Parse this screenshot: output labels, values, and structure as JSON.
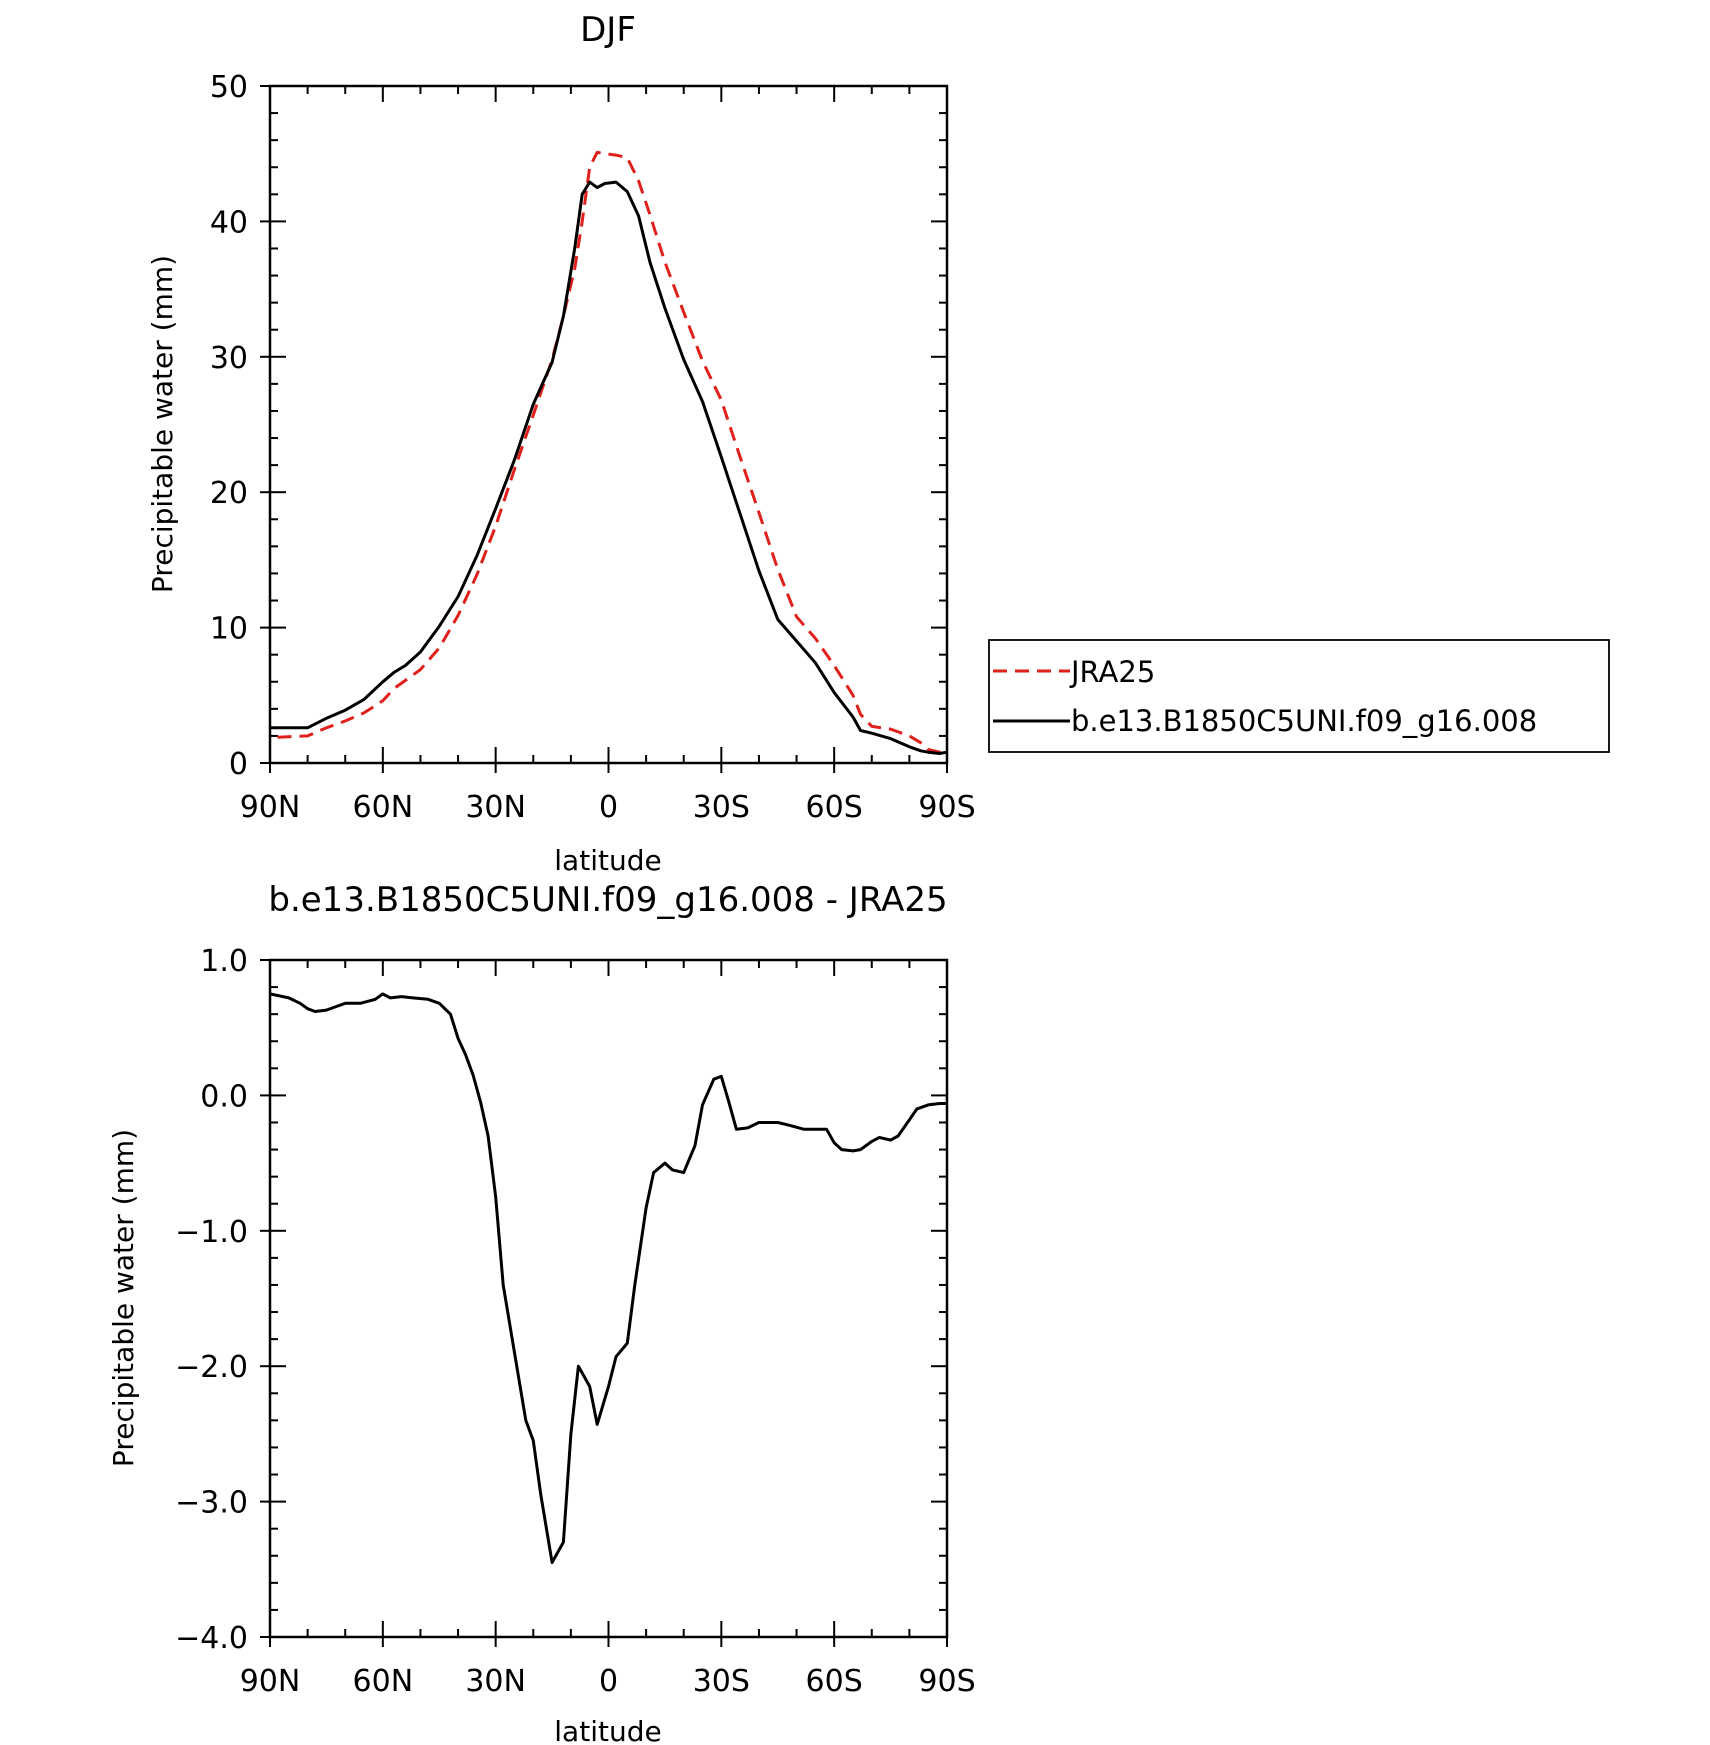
{
  "chart_data": [
    {
      "type": "line",
      "title": "DJF",
      "xlabel": "latitude",
      "ylabel": "Precipitable water (mm)",
      "xlim": [
        90,
        -90
      ],
      "ylim": [
        0,
        50
      ],
      "xticks": [
        90,
        60,
        30,
        0,
        -30,
        -60,
        -90
      ],
      "xtick_labels": [
        "90N",
        "60N",
        "30N",
        "0",
        "30S",
        "60S",
        "90S"
      ],
      "yticks": [
        0,
        10,
        20,
        30,
        40,
        50
      ],
      "ytick_labels": [
        "0",
        "10",
        "20",
        "30",
        "40",
        "50"
      ],
      "grid": false,
      "legend": {
        "placement": "right",
        "entries": [
          "JRA25",
          "b.e13.B1850C5UNI.f09_g16.008"
        ]
      },
      "series": [
        {
          "name": "JRA25",
          "color": "#e0201b",
          "dash": "dashed",
          "x": [
            88,
            80,
            75,
            70,
            65,
            60,
            57,
            54,
            50,
            45,
            40,
            35,
            30,
            25,
            20,
            15,
            12,
            9,
            7,
            5,
            3,
            1,
            -2,
            -5,
            -8,
            -11,
            -15,
            -20,
            -25,
            -30,
            -35,
            -40,
            -45,
            -50,
            -55,
            -60,
            -65,
            -67,
            -70,
            -75,
            -80,
            -83,
            -85,
            -88,
            -90
          ],
          "y": [
            1.9,
            2.0,
            2.6,
            3.1,
            3.7,
            4.6,
            5.5,
            6.1,
            6.9,
            8.5,
            10.9,
            13.9,
            17.5,
            21.7,
            25.7,
            29.8,
            33.0,
            36.5,
            40.0,
            44.0,
            45.1,
            45.0,
            44.9,
            44.7,
            43.0,
            40.5,
            37.0,
            33.3,
            29.7,
            26.8,
            22.6,
            18.5,
            14.3,
            10.8,
            9.2,
            7.2,
            5.0,
            3.6,
            2.7,
            2.5,
            2.0,
            1.5,
            1.0,
            0.8,
            0.8
          ]
        },
        {
          "name": "b.e13.B1850C5UNI.f09_g16.008",
          "color": "#000000",
          "dash": "solid",
          "x": [
            90,
            80,
            75,
            70,
            65,
            60,
            57,
            54,
            50,
            45,
            40,
            35,
            30,
            25,
            20,
            15,
            12,
            9,
            7,
            5,
            3,
            1,
            -2,
            -5,
            -8,
            -11,
            -15,
            -20,
            -25,
            -30,
            -35,
            -40,
            -45,
            -50,
            -55,
            -60,
            -65,
            -67,
            -70,
            -75,
            -80,
            -83,
            -85,
            -88,
            -90
          ],
          "y": [
            2.6,
            2.6,
            3.3,
            3.9,
            4.7,
            6.0,
            6.7,
            7.2,
            8.2,
            10.1,
            12.3,
            15.3,
            18.8,
            22.4,
            26.5,
            29.6,
            33.0,
            38.0,
            42.0,
            42.9,
            42.5,
            42.8,
            42.9,
            42.2,
            40.4,
            37.0,
            33.6,
            29.8,
            26.7,
            22.6,
            18.4,
            14.2,
            10.6,
            9.0,
            7.4,
            5.2,
            3.4,
            2.4,
            2.2,
            1.8,
            1.2,
            0.9,
            0.8,
            0.7,
            0.8
          ]
        }
      ]
    },
    {
      "type": "line",
      "title": "b.e13.B1850C5UNI.f09_g16.008 - JRA25",
      "xlabel": "latitude",
      "ylabel": "Precipitable water (mm)",
      "xlim": [
        90,
        -90
      ],
      "ylim": [
        -4.0,
        1.0
      ],
      "xticks": [
        90,
        60,
        30,
        0,
        -30,
        -60,
        -90
      ],
      "xtick_labels": [
        "90N",
        "60N",
        "30N",
        "0",
        "30S",
        "60S",
        "90S"
      ],
      "yticks": [
        1.0,
        0.0,
        -1.0,
        -2.0,
        -3.0,
        -4.0
      ],
      "ytick_labels": [
        "1.0",
        "0.0",
        "−1.0",
        "−2.0",
        "−3.0",
        "−4.0"
      ],
      "grid": false,
      "series": [
        {
          "color": "#000000",
          "dash": "solid",
          "x": [
            90,
            85,
            82,
            80,
            78,
            75,
            72,
            70,
            66,
            62,
            60,
            58,
            55,
            52,
            48,
            45,
            42,
            40,
            38,
            36,
            34,
            32,
            30,
            28,
            25,
            22,
            20,
            18,
            15,
            12,
            10,
            8,
            5,
            3,
            0,
            -2,
            -5,
            -7,
            -10,
            -12,
            -15,
            -17,
            -20,
            -23,
            -25,
            -28,
            -30,
            -32,
            -34,
            -37,
            -40,
            -43,
            -45,
            -48,
            -52,
            -55,
            -58,
            -60,
            -62,
            -65,
            -67,
            -70,
            -72,
            -75,
            -77,
            -80,
            -82,
            -85,
            -88,
            -90
          ],
          "y": [
            0.75,
            0.72,
            0.68,
            0.64,
            0.62,
            0.63,
            0.66,
            0.68,
            0.68,
            0.71,
            0.75,
            0.72,
            0.73,
            0.72,
            0.71,
            0.68,
            0.6,
            0.42,
            0.3,
            0.15,
            -0.05,
            -0.3,
            -0.75,
            -1.4,
            -1.9,
            -2.4,
            -2.55,
            -2.95,
            -3.45,
            -3.3,
            -2.5,
            -2.0,
            -2.15,
            -2.43,
            -2.15,
            -1.93,
            -1.83,
            -1.4,
            -0.83,
            -0.57,
            -0.5,
            -0.55,
            -0.57,
            -0.37,
            -0.07,
            0.12,
            0.14,
            -0.05,
            -0.25,
            -0.24,
            -0.2,
            -0.2,
            -0.2,
            -0.22,
            -0.25,
            -0.25,
            -0.25,
            -0.35,
            -0.4,
            -0.41,
            -0.4,
            -0.34,
            -0.31,
            -0.33,
            -0.3,
            -0.18,
            -0.1,
            -0.07,
            -0.06,
            -0.06
          ]
        }
      ]
    }
  ]
}
